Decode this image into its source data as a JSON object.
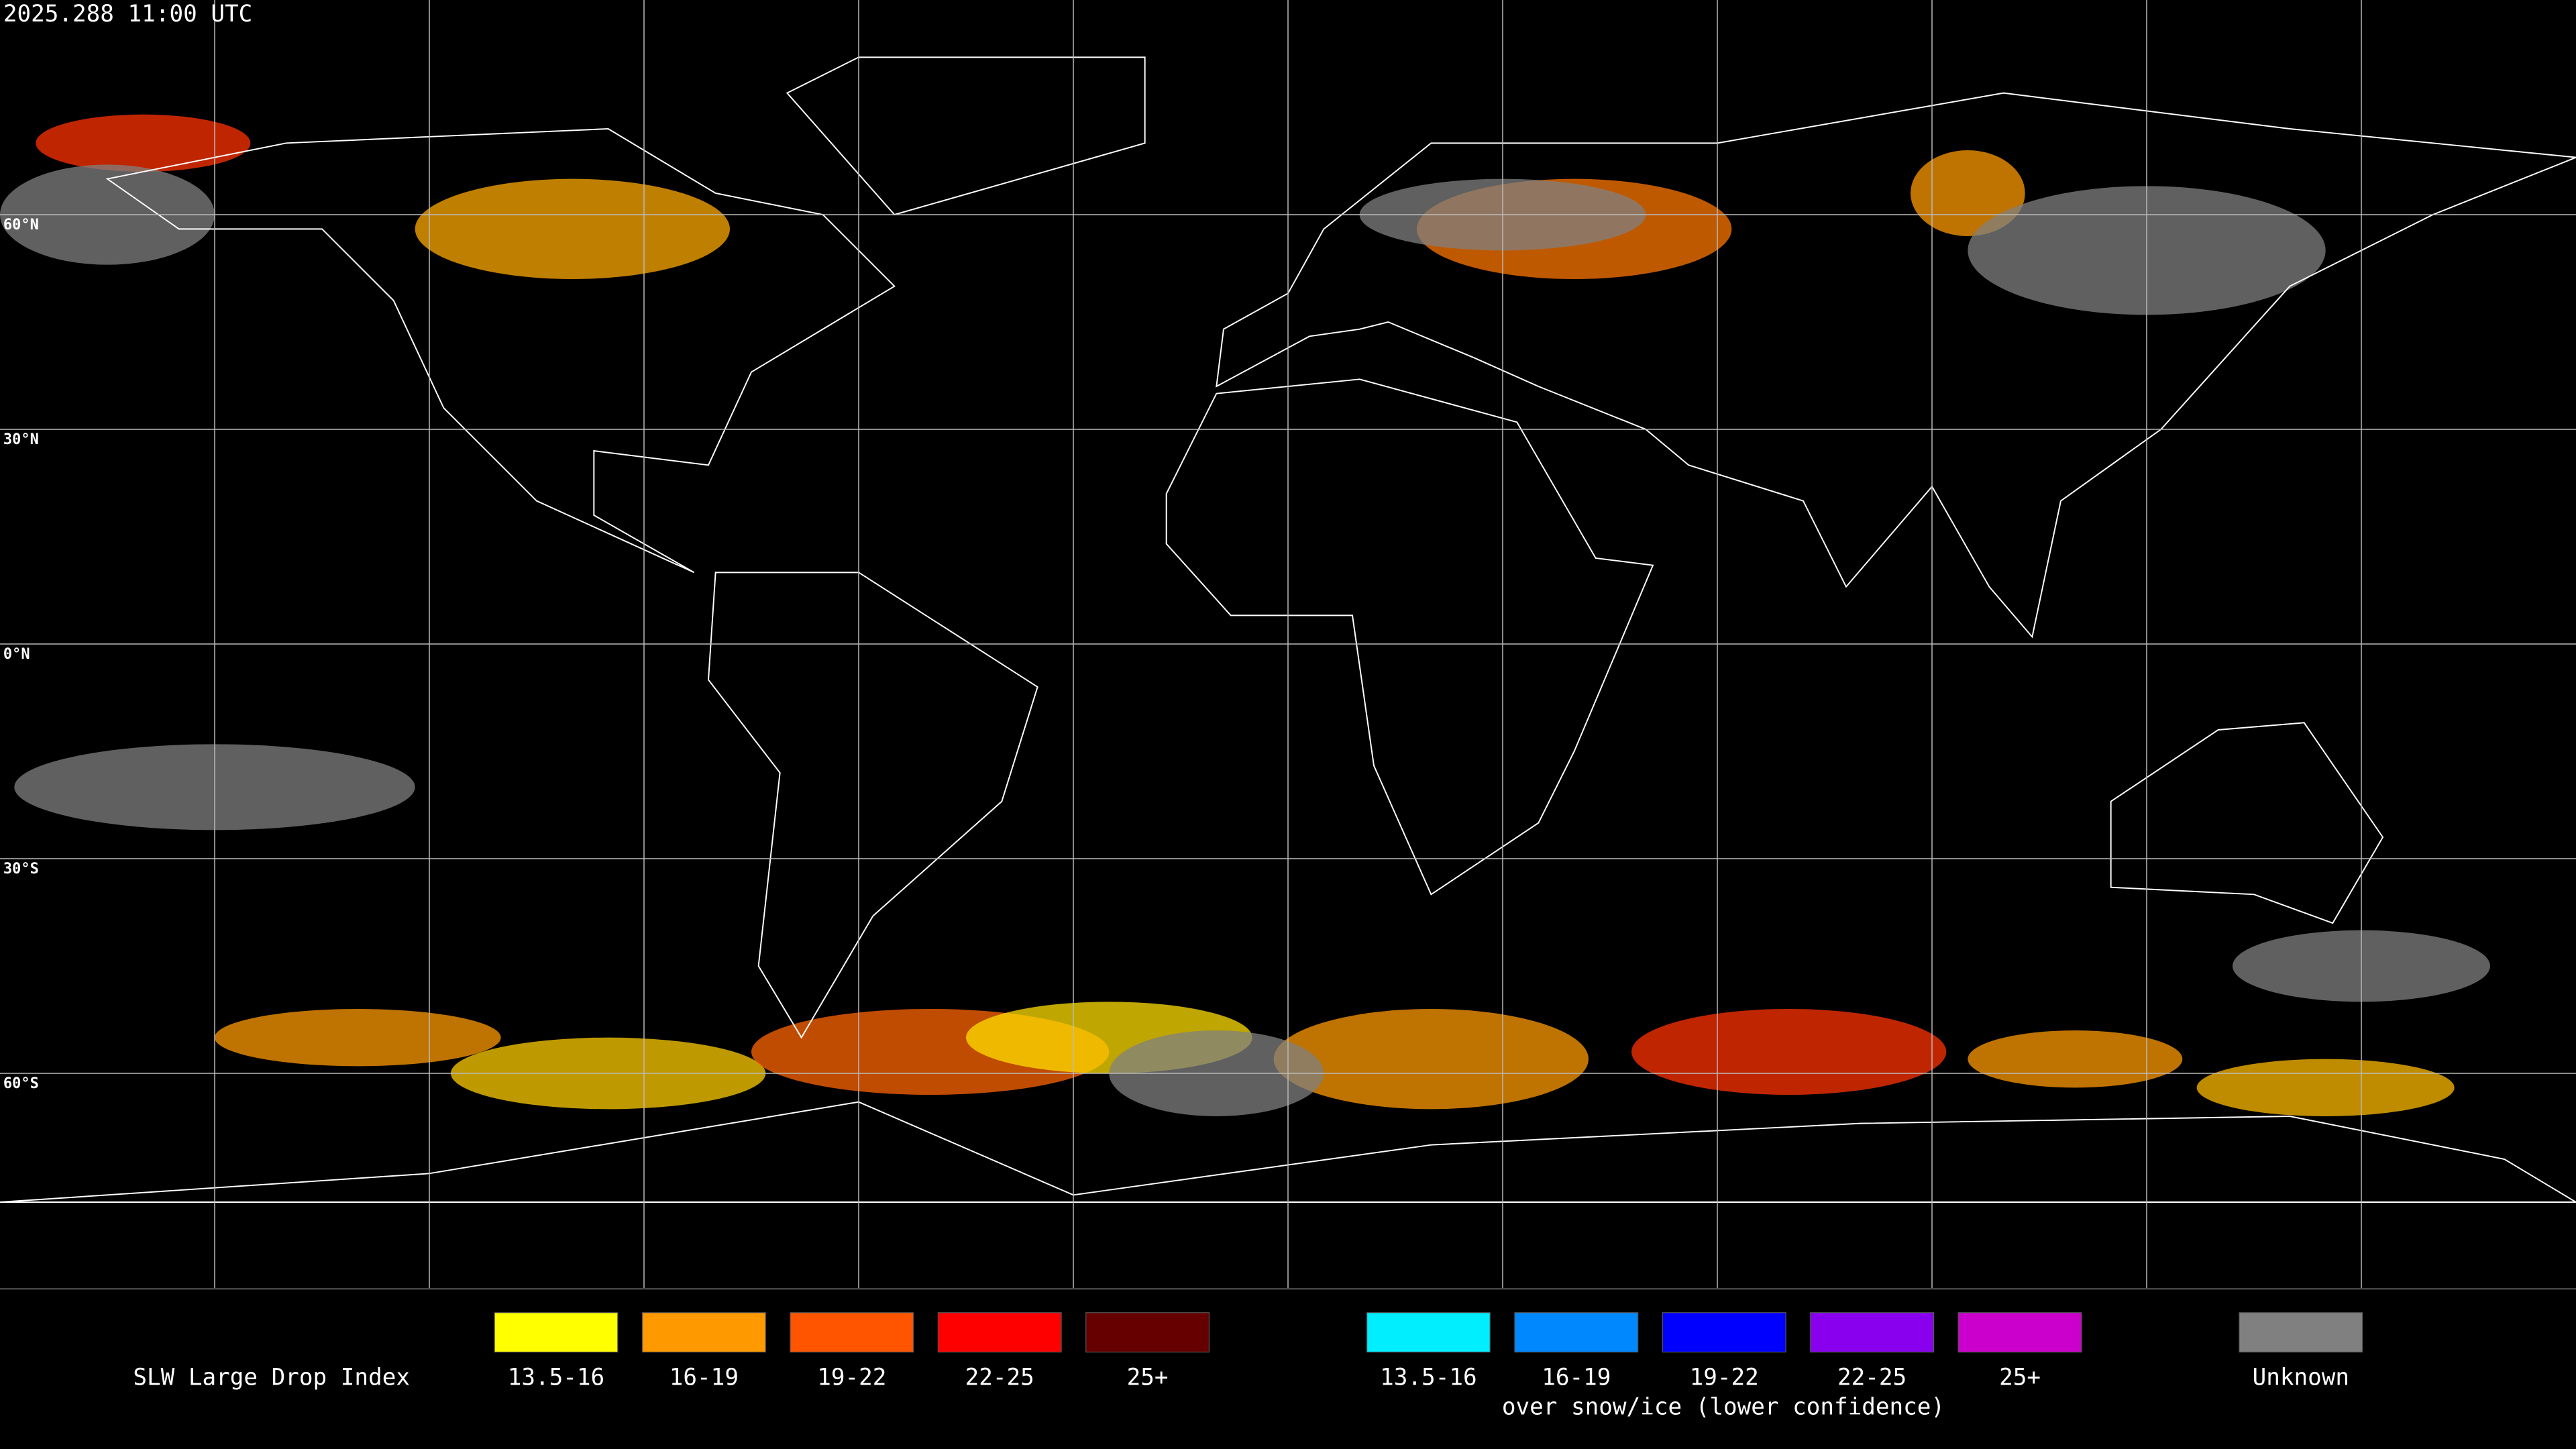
{
  "header": {
    "timestamp": "2025.288 11:00 UTC"
  },
  "map": {
    "latitude_labels": [
      "60°N",
      "30°N",
      "0°N",
      "30°S",
      "60°S"
    ]
  },
  "legend": {
    "title": "SLW Large Drop Index",
    "groups": [
      {
        "items": [
          {
            "label": "13.5-16",
            "color": "#ffff00"
          },
          {
            "label": "16-19",
            "color": "#ff9900"
          },
          {
            "label": "19-22",
            "color": "#ff5500"
          },
          {
            "label": "22-25",
            "color": "#ff0000"
          },
          {
            "label": "25+",
            "color": "#660000"
          }
        ]
      },
      {
        "items": [
          {
            "label": "13.5-16",
            "color": "#00eeff"
          },
          {
            "label": "16-19",
            "color": "#0088ff"
          },
          {
            "label": "19-22",
            "color": "#0000ff"
          },
          {
            "label": "22-25",
            "color": "#8800ee"
          },
          {
            "label": "25+",
            "color": "#cc00cc"
          }
        ]
      }
    ],
    "snow_ice_note": "over snow/ice (lower confidence)",
    "unknown": {
      "label": "Unknown",
      "color": "#808080"
    }
  }
}
